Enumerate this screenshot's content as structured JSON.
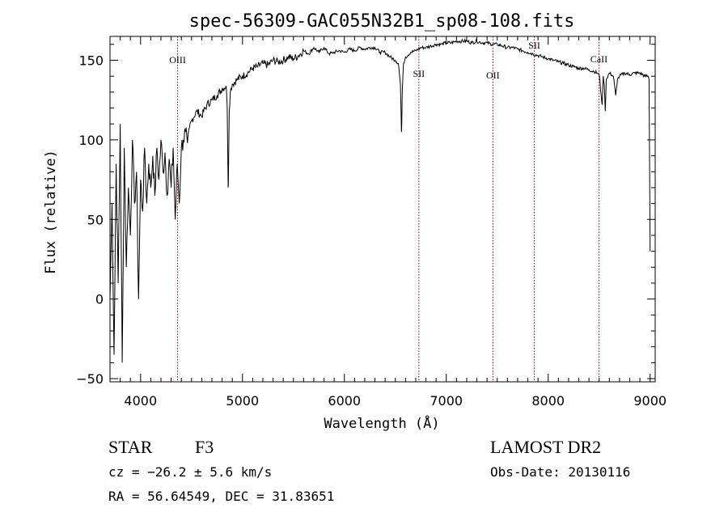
{
  "chart_data": {
    "type": "line",
    "title": "spec-56309-GAC055N32B1_sp08-108.fits",
    "xlabel": "Wavelength (Å)",
    "ylabel": "Flux (relative)",
    "xlim": [
      3700,
      9050
    ],
    "ylim": [
      -52,
      165
    ],
    "xticks": [
      4000,
      5000,
      6000,
      7000,
      8000,
      9000
    ],
    "xtick_labels": [
      "4000",
      "5000",
      "6000",
      "7000",
      "8000",
      "9000"
    ],
    "yticks": [
      -50,
      0,
      50,
      100,
      150
    ],
    "ytick_labels": [
      "−50",
      "0",
      "50",
      "100",
      "150"
    ],
    "grid": false,
    "line_color": "#000000",
    "marker_color": "#8b0000",
    "series": [
      {
        "x": [
          3700,
          3720,
          3740,
          3760,
          3780,
          3800,
          3820,
          3840,
          3860,
          3880,
          3900,
          3920,
          3940,
          3960,
          3980,
          4000,
          4020,
          4040,
          4060,
          4080,
          4100,
          4120,
          4140,
          4160,
          4180,
          4200,
          4220,
          4240,
          4260,
          4280,
          4300,
          4320,
          4340,
          4360,
          4380,
          4400,
          4420,
          4440,
          4460,
          4480,
          4500,
          4550,
          4600,
          4650,
          4700,
          4750,
          4800,
          4840,
          4850,
          4860,
          4861,
          4870,
          4880,
          4900,
          4950,
          5000,
          5050,
          5100,
          5150,
          5200,
          5250,
          5300,
          5350,
          5400,
          5450,
          5500,
          5550,
          5600,
          5650,
          5700,
          5750,
          5800,
          5850,
          5900,
          5950,
          6000,
          6050,
          6100,
          6150,
          6200,
          6250,
          6300,
          6350,
          6400,
          6450,
          6500,
          6530,
          6550,
          6560,
          6563,
          6568,
          6580,
          6600,
          6650,
          6700,
          6750,
          6800,
          6850,
          6900,
          6950,
          7000,
          7050,
          7100,
          7150,
          7200,
          7250,
          7300,
          7350,
          7400,
          7450,
          7500,
          7550,
          7600,
          7650,
          7700,
          7750,
          7800,
          7850,
          7900,
          7950,
          8000,
          8050,
          8100,
          8150,
          8200,
          8250,
          8300,
          8350,
          8400,
          8450,
          8480,
          8500,
          8520,
          8530,
          8540,
          8550,
          8560,
          8570,
          8600,
          8640,
          8662,
          8680,
          8700,
          8750,
          8800,
          8850,
          8900,
          8950,
          8980,
          8990,
          9000
        ],
        "y": [
          0,
          60,
          -35,
          85,
          10,
          110,
          -40,
          95,
          20,
          70,
          40,
          100,
          60,
          80,
          0,
          75,
          55,
          95,
          60,
          85,
          70,
          90,
          65,
          95,
          75,
          100,
          80,
          92,
          65,
          88,
          70,
          95,
          50,
          85,
          60,
          95,
          100,
          105,
          98,
          108,
          112,
          118,
          115,
          122,
          125,
          128,
          132,
          134,
          120,
          70,
          72,
          118,
          130,
          135,
          138,
          140,
          142,
          145,
          146,
          148,
          147,
          150,
          149,
          150,
          152,
          151,
          153,
          156,
          154,
          158,
          155,
          158,
          154,
          155,
          156,
          155,
          157,
          156,
          158,
          157,
          158,
          158,
          155,
          155,
          152,
          150,
          148,
          135,
          105,
          110,
          130,
          148,
          152,
          155,
          156,
          158,
          158,
          159,
          160,
          160,
          161,
          161,
          162,
          162,
          162,
          161,
          162,
          161,
          161,
          160,
          160,
          159,
          158,
          158,
          157,
          156,
          155,
          154,
          153,
          152,
          151,
          150,
          149,
          148,
          147,
          146,
          145,
          145,
          144,
          143,
          142,
          141,
          128,
          122,
          140,
          135,
          118,
          138,
          142,
          140,
          128,
          138,
          140,
          142,
          141,
          142,
          142,
          140,
          140,
          138,
          30
        ]
      }
    ],
    "line_markers": [
      {
        "label": "OIII",
        "x": 4363
      },
      {
        "label": "SII",
        "x": 6731
      },
      {
        "label": "OII",
        "x": 7457
      },
      {
        "label": "SII",
        "x": 7864
      },
      {
        "label": "CaII",
        "x": 8498
      }
    ]
  },
  "info": {
    "object_class": "STAR",
    "subclass": "F3",
    "survey": "LAMOST DR2",
    "cz": "cz = −26.2 ± 5.6 km/s",
    "obs_date": "Obs-Date: 20130116",
    "coords": "RA =  56.64549, DEC =  31.83651"
  }
}
